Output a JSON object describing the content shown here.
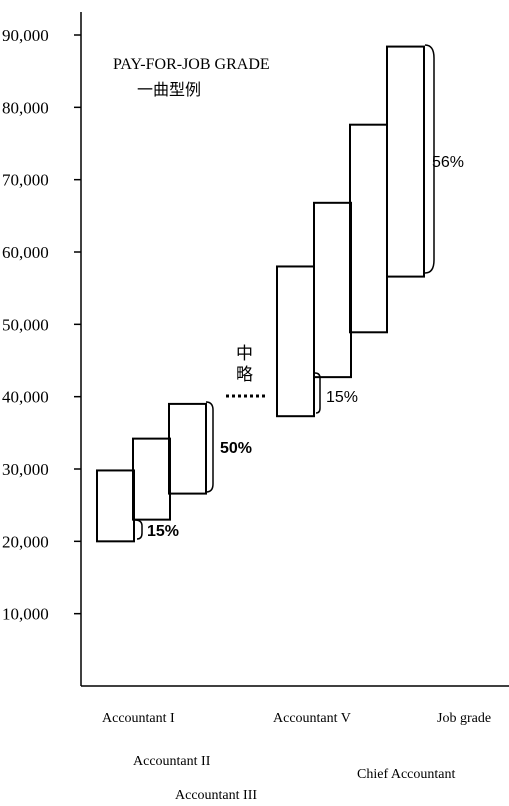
{
  "chart_data": {
    "type": "floating-bar",
    "title": "PAY-FOR-JOB GRADE",
    "subtitle": "一曲型例",
    "ylim": [
      0,
      90000
    ],
    "y_ticks": [
      "10,000",
      "20,000",
      "30,000",
      "40,000",
      "50,000",
      "60,000",
      "70,000",
      "80,000",
      "90,000"
    ],
    "y_tick_values": [
      10000,
      20000,
      30000,
      40000,
      50000,
      60000,
      70000,
      80000,
      90000
    ],
    "grades": [
      {
        "category": "Accountant I",
        "min": 20000,
        "max": 29800
      },
      {
        "category": "Accountant II",
        "min": 23000,
        "max": 34200
      },
      {
        "category": "Accountant III",
        "min": 26600,
        "max": 39000
      },
      {
        "category": "Accountant V",
        "min": 37300,
        "max": 58000
      },
      {
        "category": "",
        "min": 42700,
        "max": 66800
      },
      {
        "category": "",
        "min": 48900,
        "max": 77600
      },
      {
        "category": "Chief Accountant",
        "min": 56600,
        "max": 88400
      }
    ],
    "x_axis_label": "Job grade",
    "annotations": [
      {
        "label": "15%",
        "bold": true
      },
      {
        "label": "50%",
        "bold": true
      },
      {
        "label": "15%",
        "bold": false
      },
      {
        "label": "56%",
        "bold": false
      }
    ],
    "gap_label": "中略"
  }
}
